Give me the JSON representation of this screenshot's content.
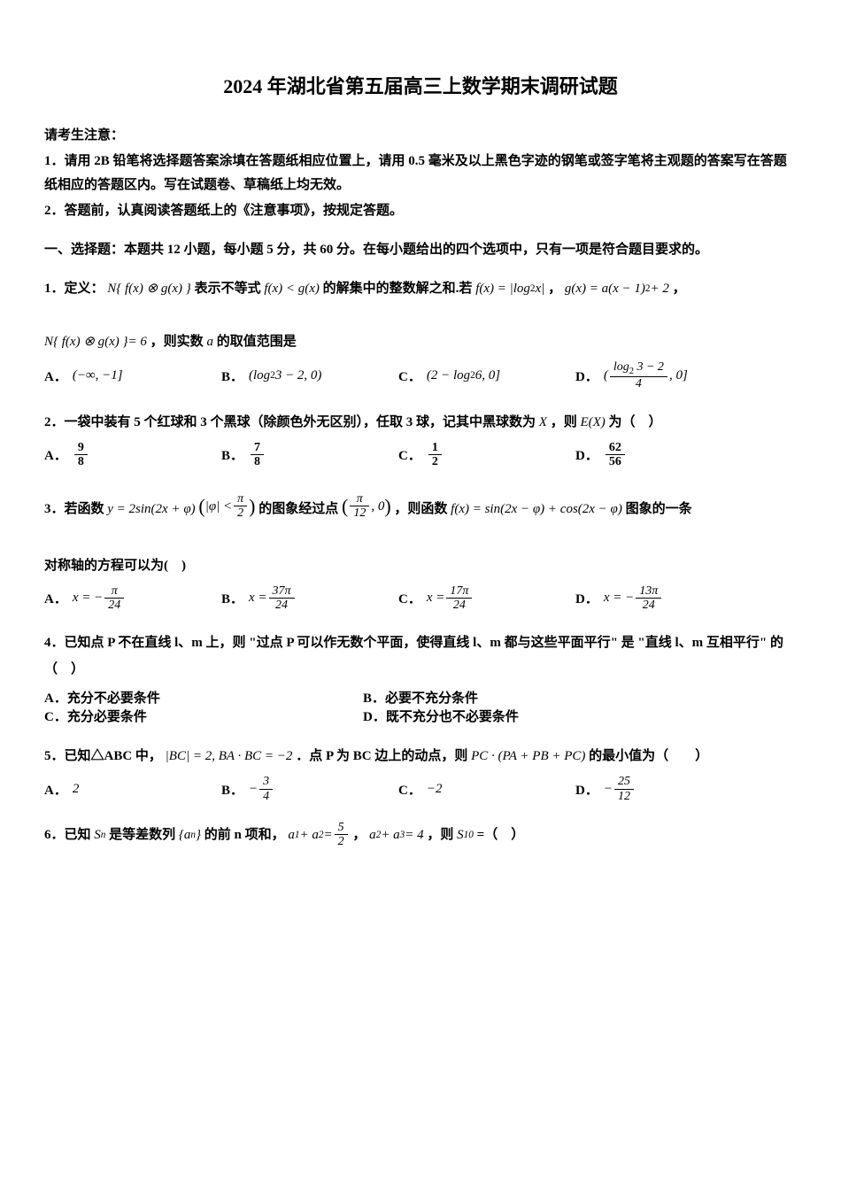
{
  "title": "2024 年湖北省第五届高三上数学期末调研试题",
  "notice": {
    "header": "请考生注意：",
    "item1": "1．请用 2B 铅笔将选择题答案涂填在答题纸相应位置上，请用 0.5 毫米及以上黑色字迹的钢笔或签字笔将主观题的答案写在答题纸相应的答题区内。写在试题卷、草稿纸上均无效。",
    "item2": "2．答题前，认真阅读答题纸上的《注意事项》，按规定答题。"
  },
  "section1_heading": "一、选择题：本题共 12 小题，每小题 5 分，共 60 分。在每小题给出的四个选项中，只有一项是符合题目要求的。",
  "q1": {
    "text1": "1．定义：",
    "text2": " 表示不等式 ",
    "text3": " 的解集中的整数解之和.若 ",
    "text4": "，",
    "text5": "，",
    "text6": "，则实数 ",
    "text7": " 的取值范围是",
    "fx_lt_gx": "f(x) < g(x)",
    "fxdef": "f(x) = |log",
    "fx_tail": " x|",
    "gxdef": "g(x) = a(x − 1)",
    "gxdef_tail": " + 2",
    "neq6": " = 6",
    "a_var": "a",
    "options": {
      "A": "(−∞, −1]",
      "B_pre": "(log",
      "B_post": " 3 − 2, 0)",
      "C_pre": "(2 − log",
      "C_post": " 6, 0]",
      "D_pre": "(",
      "D_num_pre": "log",
      "D_num_post": " 3 − 2",
      "D_den": "4",
      "D_suffix": ", 0]"
    }
  },
  "q2": {
    "text1": "2．一袋中装有 5 个红球和 3 个黑球（除颜色外无区别），任取 3 球，记其中黑球数为 ",
    "X": "X",
    "text2": " ，则 ",
    "EX": "E(X)",
    "text3": " 为（　）",
    "options": {
      "A_num": "9",
      "A_den": "8",
      "B_num": "7",
      "B_den": "8",
      "C_num": "1",
      "C_den": "2",
      "D_num": "62",
      "D_den": "56"
    }
  },
  "q3": {
    "text1": "3．若函数 ",
    "y_def": "y = 2sin(2x + φ)",
    "phi_abs_open": "|φ| < ",
    "pi2_num": "π",
    "pi2_den": "2",
    "text2": " 的图象经过点 ",
    "pt_num": "π",
    "pt_den": "12",
    "pt_suf": ", 0",
    "text3": "，则函数 ",
    "fxdef": "f(x) = sin(2x − φ) + cos(2x − φ)",
    "text4": "图象的一条",
    "text5": "对称轴的方程可以为(　)",
    "options": {
      "A_pre": "x = −",
      "A_num": "π",
      "A_den": "24",
      "B_pre": "x = ",
      "B_num": "37π",
      "B_den": "24",
      "C_pre": "x = ",
      "C_num": "17π",
      "C_den": "24",
      "D_pre": "x = −",
      "D_num": "13π",
      "D_den": "24"
    }
  },
  "q4": {
    "text1": "4．已知点 P 不在直线 l、m 上，则 \"过点 P 可以作无数个平面，使得直线 l、m 都与这些平面平行\" 是 \"直线 l、m 互相平行\" 的（　）",
    "options": {
      "A": "A．充分不必要条件",
      "B": "B．必要不充分条件",
      "C": "C．充分必要条件",
      "D": "D．既不充分也不必要条件"
    }
  },
  "q5": {
    "text1": "5．已知△ABC 中，",
    "bc_len": "|BC| = 2, BA · BC = −2",
    "text2": "．点 P 为 BC 边上的动点，则 ",
    "expr": "PC · (PA + PB + PC)",
    "text3": " 的最小值为（　　）",
    "options": {
      "A": "2",
      "B_pre": "−",
      "B_num": "3",
      "B_den": "4",
      "C": "−2",
      "D_pre": "−",
      "D_num": "25",
      "D_den": "12"
    }
  },
  "q6": {
    "text1": "6．已知 ",
    "Sn": "S",
    "sn_sub": "n",
    "text2": " 是等差数列 ",
    "an_open": "{a",
    "an_sub": "n",
    "an_close": "}",
    "text3": " 的前 n 项和，",
    "a12_lhs": "a",
    "a12_sub1": "1",
    "plus": " + a",
    "a12_sub2": "2",
    "eq": " = ",
    "a12_num": "5",
    "a12_den": "2",
    "text4": "，",
    "a23_lhs": "a",
    "a23_sub1": "2",
    "plus2": " + a",
    "a23_sub2": "3",
    "a23_rhs": " = 4",
    "text5": "，则 ",
    "S10": "S",
    "s10_sub": "10",
    "text6": " =（　）"
  },
  "labels": {
    "A": "A．",
    "B": "B．",
    "C": "C．",
    "D": "D．"
  },
  "colors": {
    "text": "#000000",
    "bg": "#ffffff"
  },
  "fonts": {
    "body_family": "SimSun",
    "math_family": "Times New Roman",
    "title_size": 22,
    "body_size": 15
  }
}
